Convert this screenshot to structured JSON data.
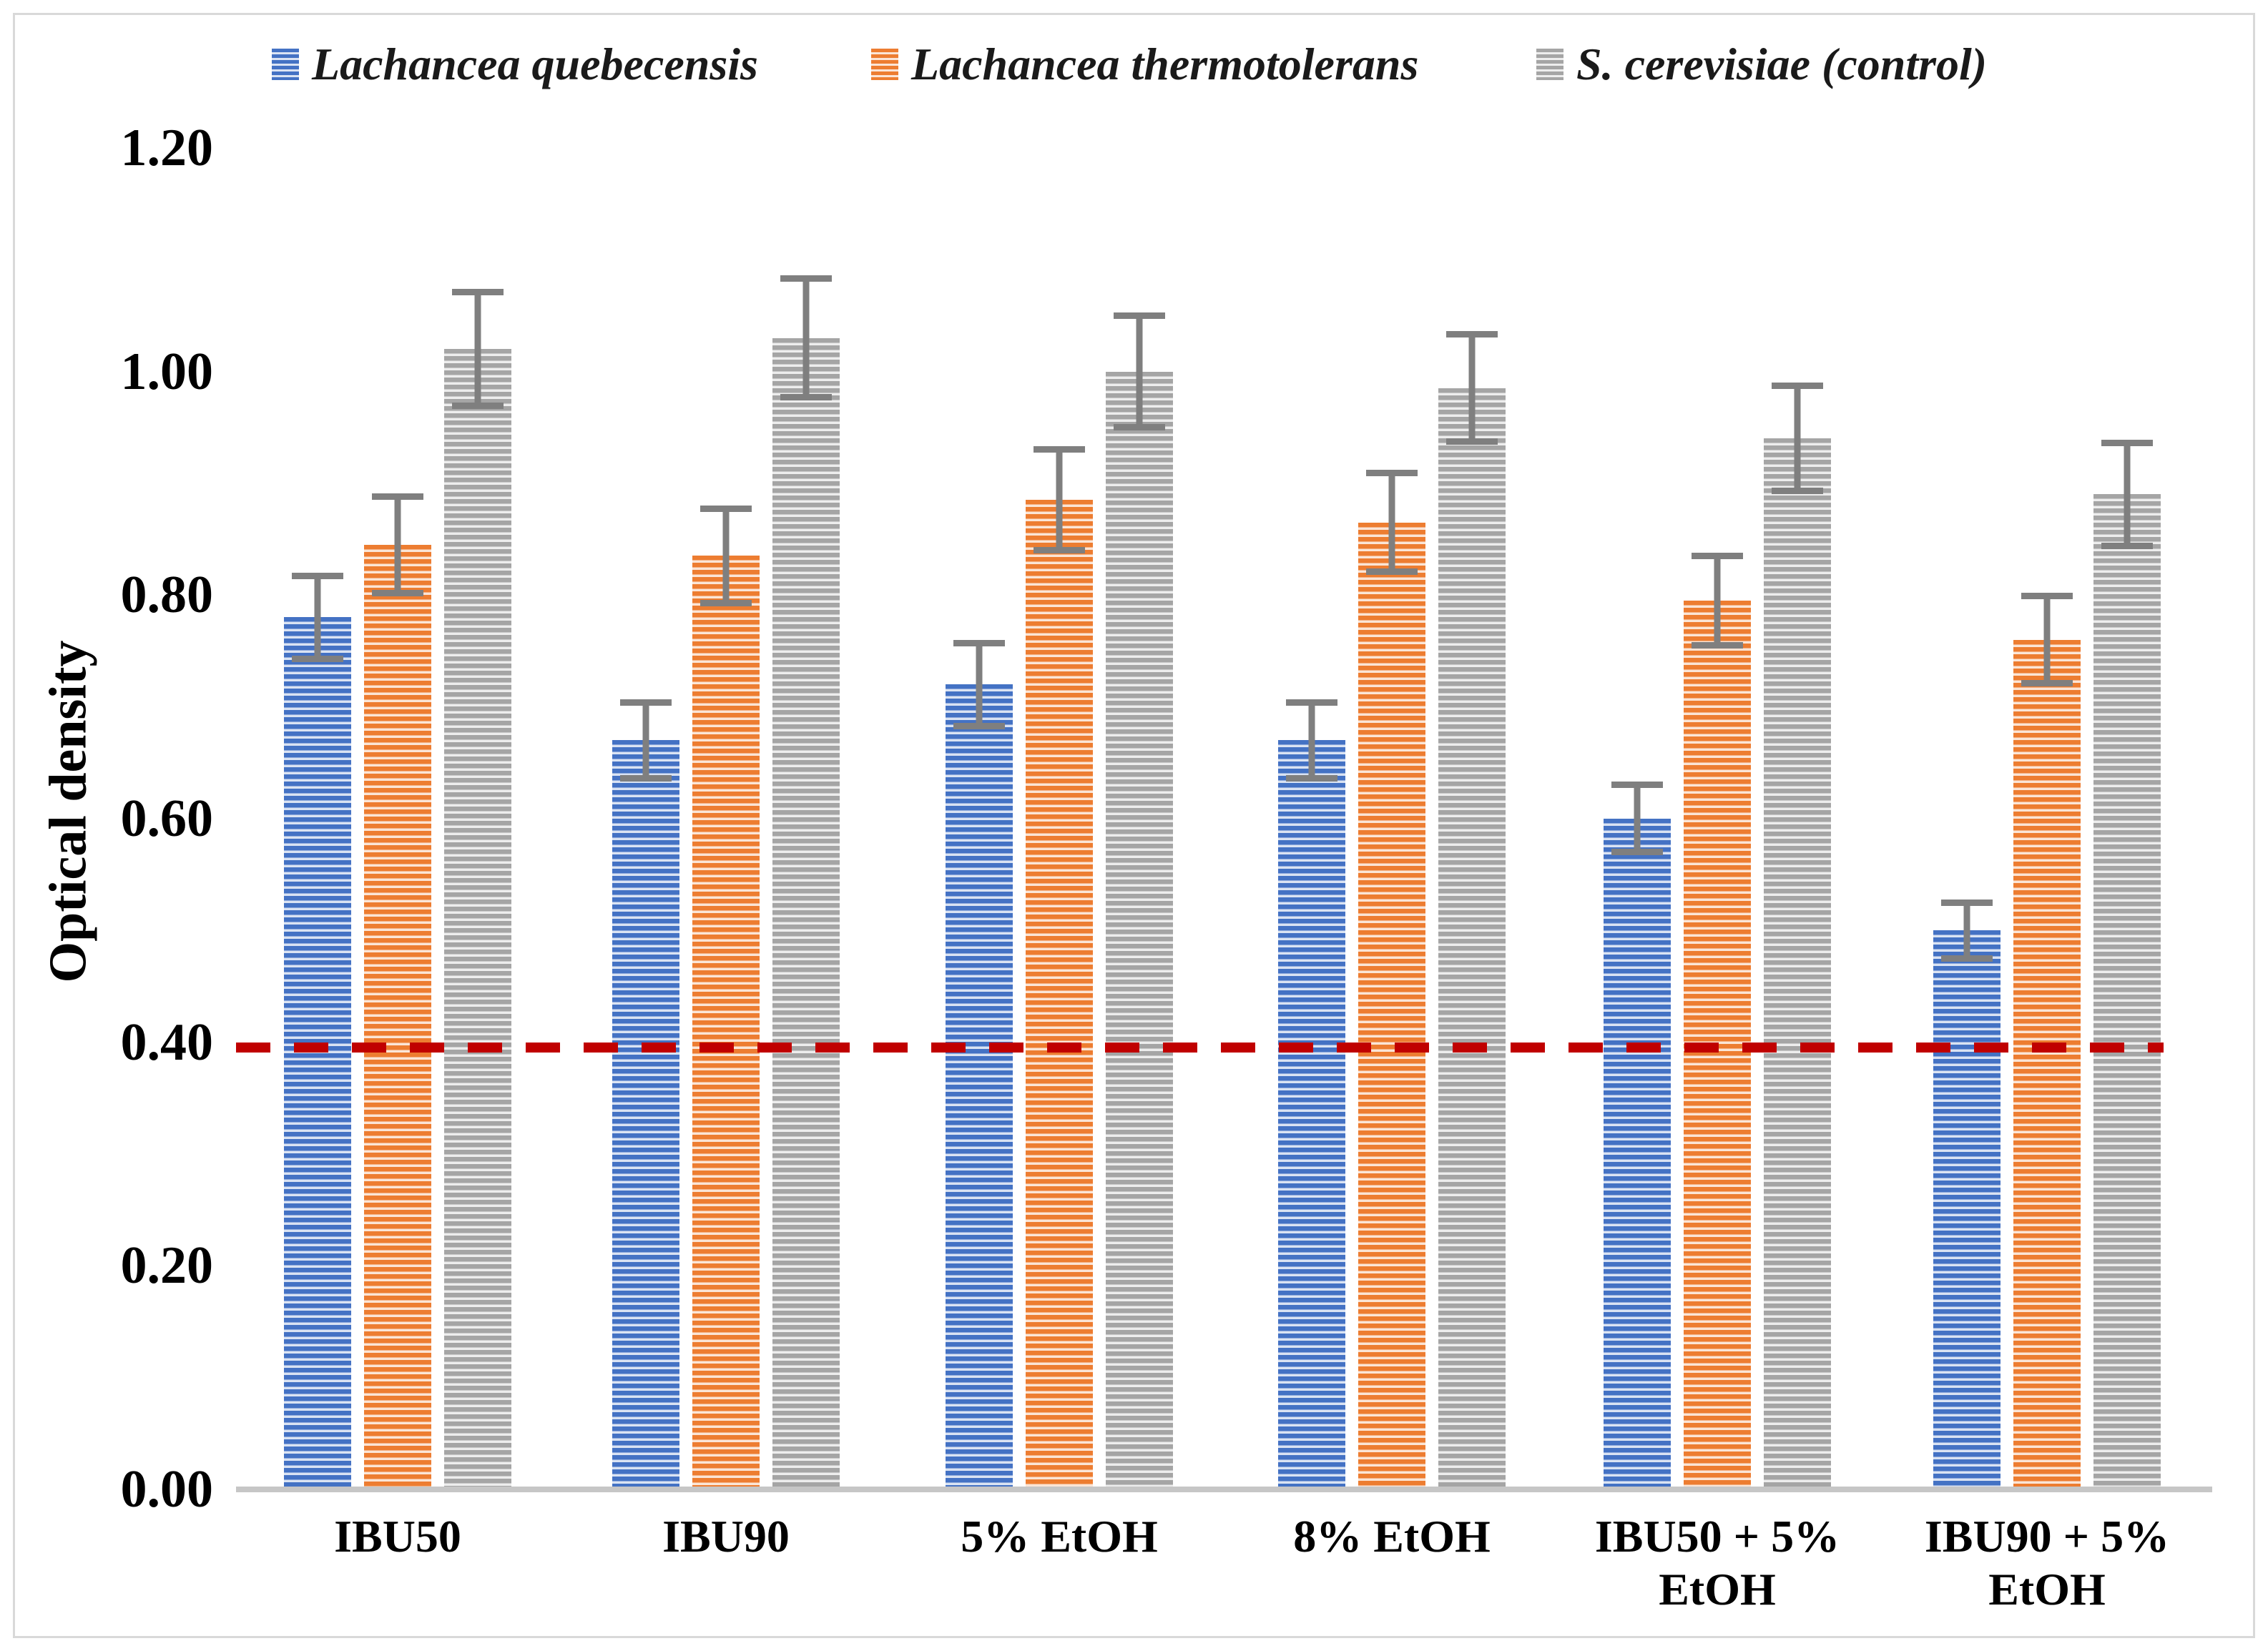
{
  "chart_data": {
    "type": "bar",
    "title": "",
    "ylabel": "Optical density",
    "xlabel": "",
    "categories": [
      "IBU50",
      "IBU90",
      "5% EtOH",
      "8% EtOH",
      "IBU50 + 5%\nEtOH",
      "IBU90 + 5%\nEtOH"
    ],
    "series": [
      {
        "name": "Lachancea quebecensis",
        "color": "#4472C4",
        "values": [
          0.78,
          0.67,
          0.72,
          0.67,
          0.6,
          0.5
        ],
        "errors": [
          0.037,
          0.034,
          0.037,
          0.034,
          0.03,
          0.025
        ]
      },
      {
        "name": "Lachancea thermotolerans",
        "color": "#ED7D31",
        "values": [
          0.845,
          0.835,
          0.885,
          0.865,
          0.795,
          0.76
        ],
        "errors": [
          0.043,
          0.042,
          0.045,
          0.044,
          0.04,
          0.039
        ]
      },
      {
        "name": "S. cerevisiae (control)",
        "color": "#A5A5A5",
        "values": [
          1.02,
          1.03,
          1.0,
          0.985,
          0.94,
          0.89
        ],
        "errors": [
          0.051,
          0.053,
          0.05,
          0.048,
          0.047,
          0.046
        ]
      }
    ],
    "y_ticks": [
      "1.20",
      "1.00",
      "0.80",
      "0.60",
      "0.40",
      "0.20",
      "0.00"
    ],
    "ylim": [
      0,
      1.2
    ],
    "grid": false,
    "legend_position": "top",
    "bar_pattern": "light-horizontal-stripes",
    "error_bar_color": "#7F7F7F",
    "axis_line_color": "#C6C6C6",
    "threshold_line": {
      "value": 0.395,
      "color": "#C00000",
      "style": "dashed"
    }
  }
}
